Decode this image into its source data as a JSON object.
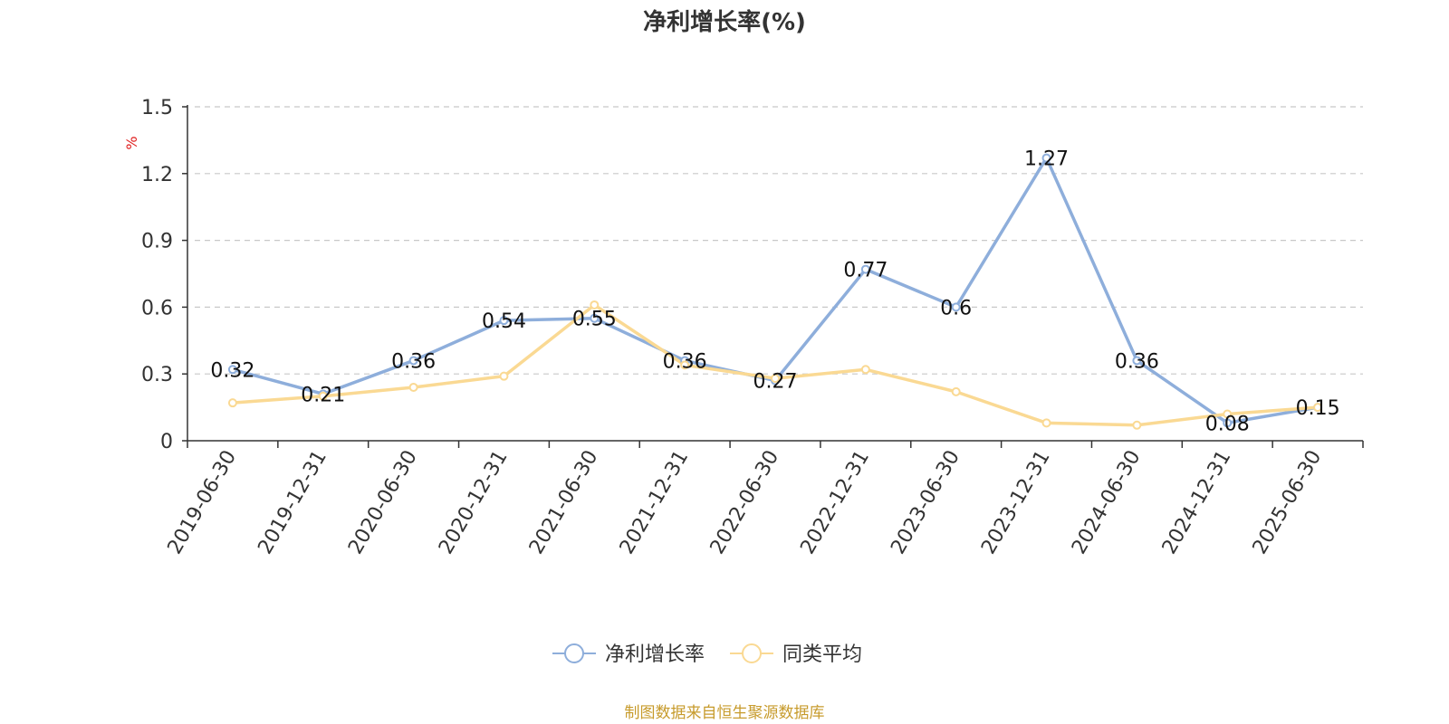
{
  "chart_data": {
    "type": "line",
    "title": "净利增长率(%)",
    "ylabel": "%",
    "xlabel": "",
    "ylim": [
      0,
      1.5
    ],
    "yticks": [
      0,
      0.3,
      0.6,
      0.9,
      1.2,
      1.5
    ],
    "ytick_labels": [
      "0",
      "0.3",
      "0.6",
      "0.9",
      "1.2",
      "1.5"
    ],
    "categories": [
      "2019-06-30",
      "2019-12-31",
      "2020-06-30",
      "2020-12-31",
      "2021-06-30",
      "2021-12-31",
      "2022-06-30",
      "2022-12-31",
      "2023-06-30",
      "2023-12-31",
      "2024-06-30",
      "2024-12-31",
      "2025-06-30"
    ],
    "grid": true,
    "legend_position": "bottom",
    "series": [
      {
        "name": "净利增长率",
        "color": "#8eaedb",
        "values": [
          0.32,
          0.21,
          0.36,
          0.54,
          0.55,
          0.36,
          0.27,
          0.77,
          0.6,
          1.27,
          0.36,
          0.08,
          0.15
        ],
        "labels": [
          "0.32",
          "0.21",
          "0.36",
          "0.54",
          "0.55",
          "0.36",
          "0.27",
          "0.77",
          "0.6",
          "1.27",
          "0.36",
          "0.08",
          "0.15"
        ]
      },
      {
        "name": "同类平均",
        "color": "#fad993",
        "values": [
          0.17,
          0.2,
          0.24,
          0.29,
          0.61,
          0.34,
          0.28,
          0.32,
          0.22,
          0.08,
          0.07,
          0.12,
          0.15
        ]
      }
    ]
  },
  "source_note": "制图数据来自恒生聚源数据库",
  "source_note_color": "#c79b2c",
  "axis_color": "#333333",
  "ylabel_color": "#e02020"
}
